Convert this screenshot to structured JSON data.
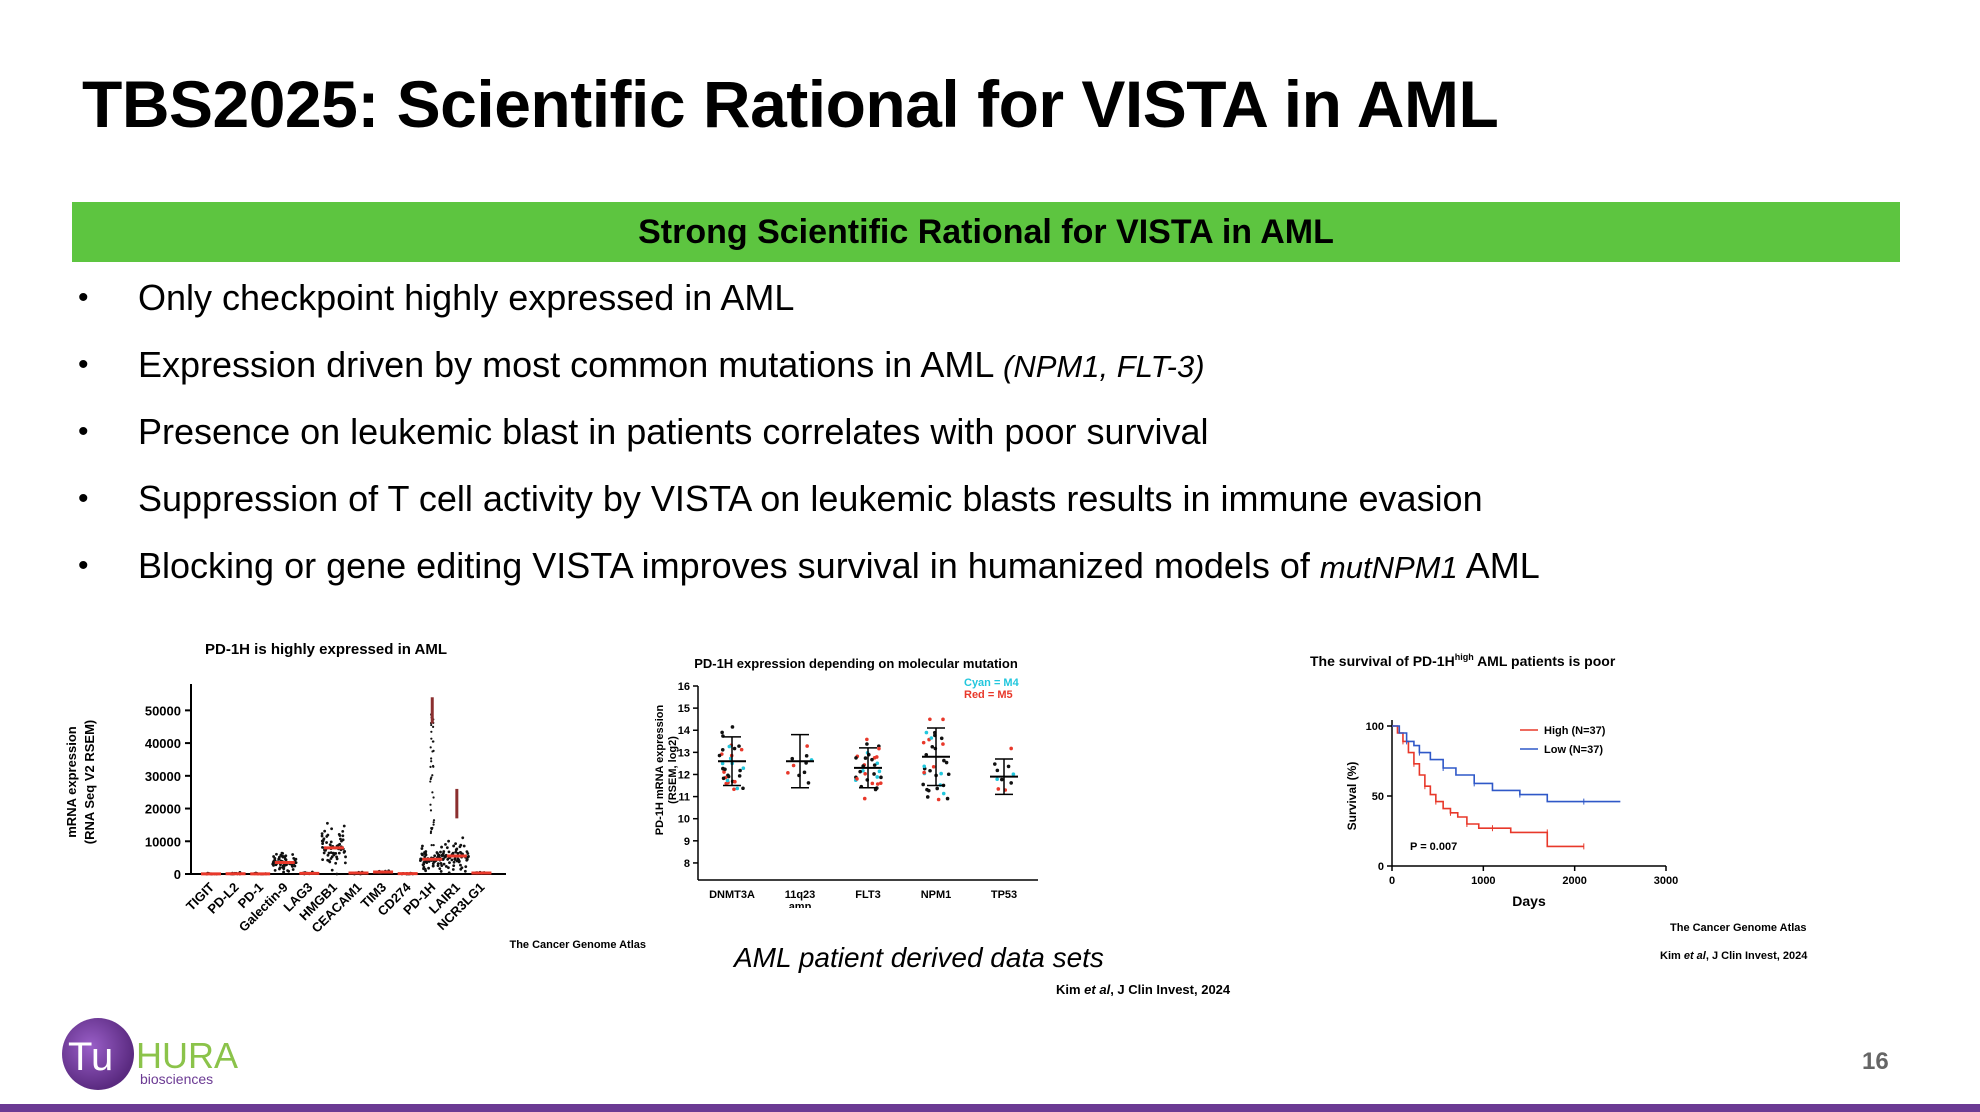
{
  "slide": {
    "title": "TBS2025: Scientific Rational for VISTA in AML",
    "banner": "Strong Scientific Rational for VISTA in AML",
    "bullets": [
      {
        "text": "Only checkpoint highly expressed in AML",
        "italic": ""
      },
      {
        "text": "Expression driven by most common mutations in AML ",
        "italic": "(NPM1, FLT-3)"
      },
      {
        "text": "Presence on leukemic blast in patients correlates with poor survival",
        "italic": ""
      },
      {
        "text": "Suppression of T cell activity by VISTA on leukemic blasts results in immune evasion",
        "italic": ""
      },
      {
        "text": "Blocking or gene editing VISTA improves survival in humanized models of ",
        "italic": "mutNPM1",
        "after": " AML"
      }
    ],
    "bullet_glyph": "•",
    "caption": "AML patient derived data sets",
    "cite_center": {
      "author": "Kim ",
      "etal": "et al",
      "rest": ", J Clin Invest, 2024"
    },
    "cite_right_1": "The Cancer Genome Atlas",
    "cite_right_2": {
      "author": "Kim ",
      "etal": "et al",
      "rest": ", J Clin Invest, 2024"
    },
    "page_number": "16",
    "logo": {
      "main_a": "Tu",
      "main_b": "HURA",
      "sub": "biosciences"
    },
    "colors": {
      "banner": "#5dc540",
      "footer": "#6b3a93",
      "logo_purple": "#6b3a93",
      "logo_green": "#8bc34a"
    }
  },
  "chart_data": [
    {
      "type": "scatter",
      "title": "PD-1H is highly expressed in AML",
      "ylabel_1": "mRNA expression",
      "ylabel_2": "(RNA Seq V2 RSEM)",
      "categories": [
        "TIGIT",
        "PD-L2",
        "PD-1",
        "Galectin-9",
        "LAG3",
        "HMGB1",
        "CEACAM1",
        "TIM3",
        "CD274",
        "PD-1H",
        "LAIR1",
        "NCR3LG1"
      ],
      "medians": [
        50,
        80,
        40,
        3500,
        200,
        8000,
        300,
        600,
        100,
        4500,
        5500,
        300
      ],
      "ylim": [
        0,
        55000
      ],
      "yticks": [
        0,
        10000,
        20000,
        30000,
        40000,
        50000
      ],
      "source": "The Cancer Genome Atlas"
    },
    {
      "type": "scatter",
      "title": "PD-1H expression depending on molecular mutation",
      "ylabel_1": "PD-1H mRNA expression",
      "ylabel_2": "(RSEM, log2)",
      "categories": [
        "DNMT3A",
        "11q23",
        "FLT3",
        "NPM1",
        "TP53"
      ],
      "category_line2": [
        "",
        "amp",
        "",
        "",
        ""
      ],
      "means": [
        12.6,
        12.6,
        12.3,
        12.8,
        11.9
      ],
      "sd": [
        1.1,
        1.2,
        0.9,
        1.3,
        0.8
      ],
      "ylim": [
        7.5,
        16
      ],
      "yticks": [
        8,
        9,
        10,
        11,
        12,
        13,
        14,
        15,
        16
      ],
      "legend": [
        {
          "name": "Cyan = M4",
          "color": "#22c7dd"
        },
        {
          "name": "Red = M5",
          "color": "#e8382a"
        }
      ]
    },
    {
      "type": "line",
      "title_pre": "The survival of PD-1H",
      "title_sup": "high",
      "title_post": " AML patients is poor",
      "xlabel": "Days",
      "ylabel": "Survival (%)",
      "xlim": [
        0,
        3000
      ],
      "ylim": [
        0,
        100
      ],
      "xticks": [
        0,
        1000,
        2000,
        3000
      ],
      "yticks": [
        0,
        50,
        100
      ],
      "series": [
        {
          "name": "High (N=37)",
          "color": "#e8382a",
          "x": [
            0,
            60,
            120,
            180,
            240,
            300,
            360,
            420,
            480,
            560,
            640,
            720,
            820,
            950,
            1100,
            1300,
            1700,
            1700,
            2100
          ],
          "y": [
            100,
            95,
            89,
            81,
            73,
            65,
            57,
            51,
            46,
            41,
            38,
            35,
            30,
            27,
            27,
            24,
            24,
            14,
            14
          ]
        },
        {
          "name": "Low (N=37)",
          "color": "#2f58c8",
          "x": [
            0,
            80,
            160,
            240,
            300,
            420,
            560,
            700,
            900,
            1100,
            1400,
            1700,
            2100,
            2500
          ],
          "y": [
            100,
            95,
            89,
            86,
            81,
            76,
            70,
            65,
            59,
            54,
            51,
            46,
            46,
            46
          ]
        }
      ],
      "pvalue": "P = 0.007"
    }
  ]
}
